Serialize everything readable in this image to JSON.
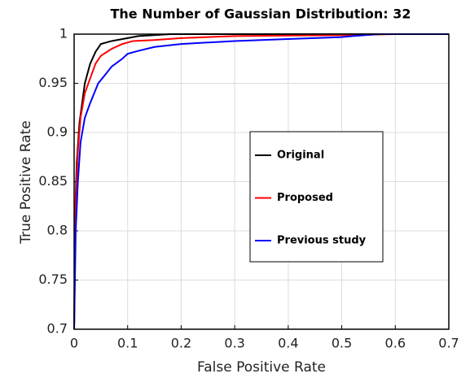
{
  "chart_data": {
    "type": "line",
    "title": "The Number of Gaussian Distribution: 32",
    "xlabel": "False Positive Rate",
    "ylabel": "True Positive Rate",
    "xlim": [
      0,
      0.7
    ],
    "ylim": [
      0.7,
      1
    ],
    "xticks": [
      0,
      0.1,
      0.2,
      0.3,
      0.4,
      0.5,
      0.6,
      0.7
    ],
    "yticks": [
      0.7,
      0.75,
      0.8,
      0.85,
      0.9,
      0.95,
      1
    ],
    "grid": true,
    "legend": "right",
    "series": [
      {
        "name": "Original",
        "color": "#000000",
        "x": [
          0,
          0.002,
          0.005,
          0.01,
          0.02,
          0.03,
          0.04,
          0.05,
          0.07,
          0.1,
          0.12,
          0.18,
          0.7
        ],
        "values": [
          0.7,
          0.82,
          0.87,
          0.91,
          0.95,
          0.97,
          0.982,
          0.99,
          0.993,
          0.996,
          0.998,
          1,
          1
        ]
      },
      {
        "name": "Proposed",
        "color": "#ff0000",
        "x": [
          0,
          0.003,
          0.007,
          0.012,
          0.02,
          0.03,
          0.04,
          0.05,
          0.07,
          0.09,
          0.11,
          0.15,
          0.2,
          0.3,
          0.5,
          0.6,
          0.7
        ],
        "values": [
          0.7,
          0.83,
          0.88,
          0.915,
          0.94,
          0.955,
          0.97,
          0.978,
          0.985,
          0.99,
          0.993,
          0.994,
          0.996,
          0.998,
          0.999,
          1,
          1
        ]
      },
      {
        "name": "Previous study",
        "color": "#0000ff",
        "x": [
          0,
          0.003,
          0.007,
          0.012,
          0.02,
          0.03,
          0.045,
          0.06,
          0.07,
          0.09,
          0.1,
          0.12,
          0.15,
          0.2,
          0.3,
          0.4,
          0.45,
          0.5,
          0.52,
          0.57,
          0.7
        ],
        "values": [
          0.7,
          0.8,
          0.85,
          0.89,
          0.915,
          0.93,
          0.95,
          0.96,
          0.967,
          0.975,
          0.98,
          0.983,
          0.987,
          0.99,
          0.993,
          0.995,
          0.996,
          0.997,
          0.998,
          1,
          1
        ]
      }
    ]
  }
}
